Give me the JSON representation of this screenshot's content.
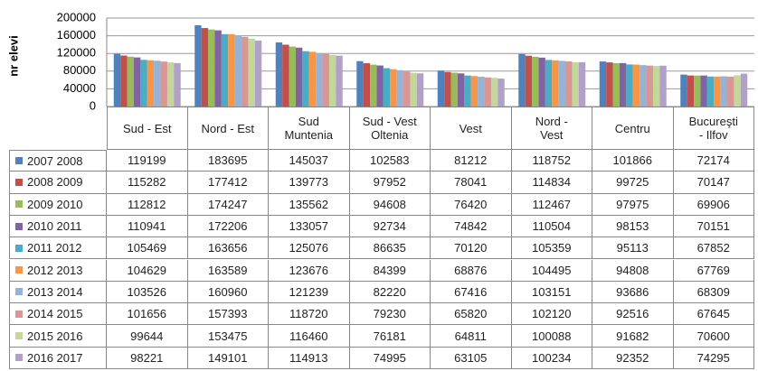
{
  "chart_data": {
    "type": "bar",
    "y_label": "nr elevi",
    "categories": [
      "Sud - Est",
      "Nord - Est",
      "Sud\nMuntenia",
      "Sud - Vest\nOltenia",
      "Vest",
      "Nord -\nVest",
      "Centru",
      "Bucureşti\n- Ilfov"
    ],
    "series": [
      {
        "name": "2007 2008",
        "color": "#4f81bd",
        "values": [
          119199,
          183695,
          145037,
          102583,
          81212,
          118752,
          101866,
          72174
        ]
      },
      {
        "name": "2008 2009",
        "color": "#c0504d",
        "values": [
          115282,
          177412,
          139773,
          97952,
          78041,
          114834,
          99725,
          70147
        ]
      },
      {
        "name": "2009 2010",
        "color": "#9bbb59",
        "values": [
          112812,
          174247,
          135562,
          94608,
          76420,
          112467,
          97975,
          69906
        ]
      },
      {
        "name": "2010 2011",
        "color": "#8064a2",
        "values": [
          110941,
          172206,
          133057,
          92734,
          74842,
          110504,
          98153,
          70151
        ]
      },
      {
        "name": "2011 2012",
        "color": "#4bacc6",
        "values": [
          105469,
          163656,
          125076,
          86635,
          70120,
          105359,
          95113,
          67852
        ]
      },
      {
        "name": "2012 2013",
        "color": "#f79646",
        "values": [
          104629,
          163589,
          123676,
          84399,
          68876,
          104495,
          94808,
          67769
        ]
      },
      {
        "name": "2013 2014",
        "color": "#95b3d7",
        "values": [
          103526,
          160960,
          121239,
          82220,
          67416,
          103151,
          93686,
          68309
        ]
      },
      {
        "name": "2014 2015",
        "color": "#da9694",
        "values": [
          101656,
          157393,
          118720,
          79230,
          65820,
          102120,
          92516,
          67645
        ]
      },
      {
        "name": "2015 2016",
        "color": "#c4d79b",
        "values": [
          99644,
          153475,
          116460,
          76181,
          64811,
          100088,
          91682,
          70600
        ]
      },
      {
        "name": "2016 2017",
        "color": "#b1a0c7",
        "values": [
          98221,
          149101,
          114913,
          74995,
          63105,
          100234,
          92352,
          74295
        ]
      }
    ],
    "ylim": [
      0,
      200000
    ],
    "yticks": [
      0,
      40000,
      80000,
      120000,
      160000,
      200000
    ],
    "grid": true
  }
}
